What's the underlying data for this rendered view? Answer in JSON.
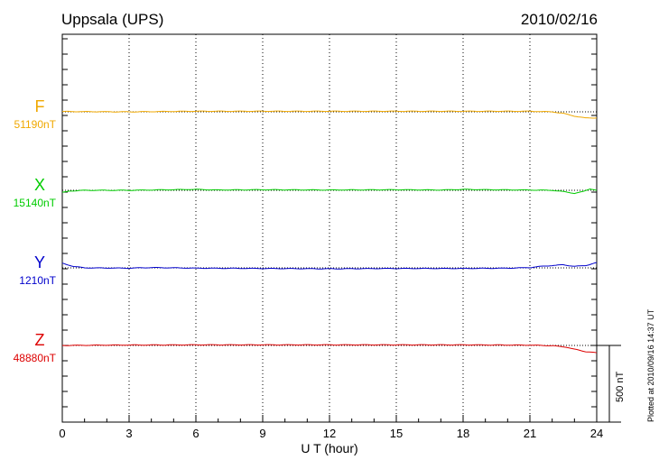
{
  "chart_data": {
    "type": "line",
    "title": "Uppsala (UPS)",
    "date": "2010/02/16",
    "xlabel": "U T (hour)",
    "xlim": [
      0,
      24
    ],
    "xticks": [
      "0",
      "3",
      "6",
      "9",
      "12",
      "15",
      "18",
      "21",
      "24"
    ],
    "scale_label": "500 nT",
    "scale_nT": 500,
    "footer": "Plotted at 2010/09/16 14:37 UT",
    "series": [
      {
        "name": "F",
        "baseline_label": "51190nT",
        "color": "#f0a800",
        "points": [
          [
            0,
            2
          ],
          [
            3,
            0
          ],
          [
            6,
            4
          ],
          [
            9,
            4
          ],
          [
            12,
            4
          ],
          [
            15,
            4
          ],
          [
            18,
            4
          ],
          [
            21,
            4
          ],
          [
            22,
            0
          ],
          [
            22.5,
            -10
          ],
          [
            23,
            -28
          ],
          [
            23.5,
            -40
          ],
          [
            24,
            -40
          ]
        ]
      },
      {
        "name": "X",
        "baseline_label": "15140nT",
        "color": "#00cc00",
        "points": [
          [
            0,
            -15
          ],
          [
            0.3,
            -5
          ],
          [
            1,
            0
          ],
          [
            3,
            0
          ],
          [
            5,
            4
          ],
          [
            6,
            6
          ],
          [
            7,
            2
          ],
          [
            9,
            4
          ],
          [
            12,
            2
          ],
          [
            15,
            4
          ],
          [
            17,
            2
          ],
          [
            18,
            6
          ],
          [
            19,
            4
          ],
          [
            21,
            2
          ],
          [
            22,
            0
          ],
          [
            22.6,
            -10
          ],
          [
            23,
            -20
          ],
          [
            23.4,
            -8
          ],
          [
            23.7,
            10
          ],
          [
            24,
            0
          ]
        ]
      },
      {
        "name": "Y",
        "baseline_label": "1210nT",
        "color": "#0000cc",
        "points": [
          [
            0,
            30
          ],
          [
            0.5,
            10
          ],
          [
            1,
            0
          ],
          [
            3,
            -2
          ],
          [
            4,
            2
          ],
          [
            6,
            -2
          ],
          [
            9,
            -4
          ],
          [
            12,
            -6
          ],
          [
            15,
            -4
          ],
          [
            18,
            -4
          ],
          [
            20,
            -2
          ],
          [
            21,
            2
          ],
          [
            21.5,
            10
          ],
          [
            22,
            15
          ],
          [
            22.5,
            20
          ],
          [
            23,
            10
          ],
          [
            23.5,
            15
          ],
          [
            24,
            35
          ]
        ]
      },
      {
        "name": "Z",
        "baseline_label": "48880nT",
        "color": "#dd0000",
        "points": [
          [
            0,
            0
          ],
          [
            2,
            2
          ],
          [
            6,
            4
          ],
          [
            9,
            4
          ],
          [
            12,
            4
          ],
          [
            15,
            4
          ],
          [
            18,
            4
          ],
          [
            21,
            2
          ],
          [
            22,
            -2
          ],
          [
            22.6,
            -10
          ],
          [
            23,
            -25
          ],
          [
            23.5,
            -40
          ],
          [
            24,
            -48
          ]
        ]
      }
    ]
  }
}
